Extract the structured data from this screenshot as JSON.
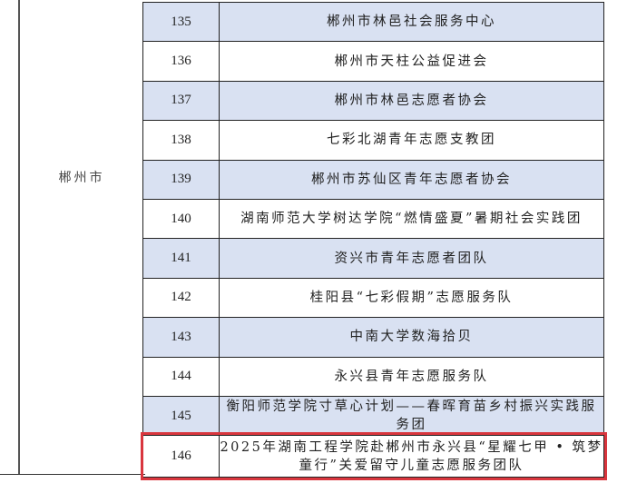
{
  "region": "郴州市",
  "highlight_color": "#d9363e",
  "row_alt_color": "#d9e1f2",
  "rows": [
    {
      "no": "135",
      "name": "郴州市林邑社会服务中心"
    },
    {
      "no": "136",
      "name": "郴州市天柱公益促进会"
    },
    {
      "no": "137",
      "name": "郴州市林邑志愿者协会"
    },
    {
      "no": "138",
      "name": "七彩北湖青年志愿支教团"
    },
    {
      "no": "139",
      "name": "郴州市苏仙区青年志愿者协会"
    },
    {
      "no": "140",
      "name": "湖南师范大学树达学院“燃情盛夏”暑期社会实践团"
    },
    {
      "no": "141",
      "name": "资兴市青年志愿者团队"
    },
    {
      "no": "142",
      "name": "桂阳县“七彩假期”志愿服务队"
    },
    {
      "no": "143",
      "name": "中南大学数海拾贝"
    },
    {
      "no": "144",
      "name": "永兴县青年志愿服务队"
    },
    {
      "no": "145",
      "name": "衡阳师范学院寸草心计划——春晖育苗乡村振兴实践服务团"
    },
    {
      "no": "146",
      "name": "2025年湖南工程学院赴郴州市永兴县“星耀七甲 • 筑梦童行”关爱留守儿童志愿服务团队"
    }
  ]
}
